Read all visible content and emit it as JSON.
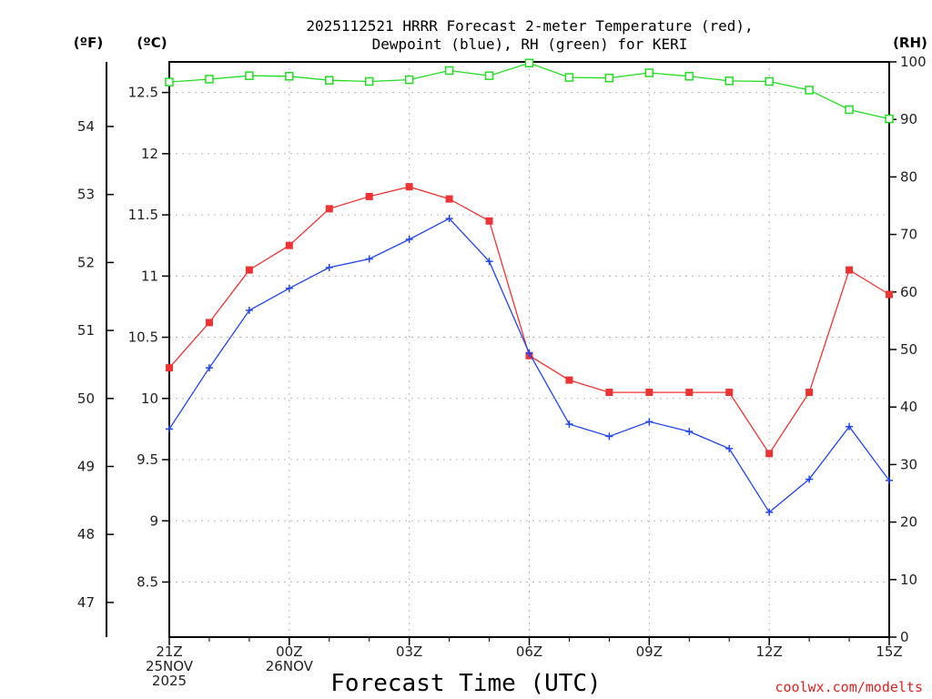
{
  "chart_data": {
    "type": "line",
    "title_lines": [
      "2025112521 HRRR Forecast 2-meter Temperature (red),",
      "Dewpoint (blue), RH (green) for KERI"
    ],
    "unit_labels": {
      "fahrenheit": "(ºF)",
      "celsius": "(ºC)",
      "rh": "(RH)"
    },
    "xlabel": "Forecast Time (UTC)",
    "credit": "coolwx.com/modelts",
    "x_hours": [
      0,
      1,
      2,
      3,
      4,
      5,
      6,
      7,
      8,
      9,
      10,
      11,
      12,
      13,
      14,
      15,
      16,
      17,
      18
    ],
    "x_ticks": [
      {
        "hour": 0,
        "lines": [
          "21Z",
          "25NOV",
          "2025"
        ]
      },
      {
        "hour": 3,
        "lines": [
          "00Z",
          "26NOV"
        ]
      },
      {
        "hour": 6,
        "lines": [
          "03Z"
        ]
      },
      {
        "hour": 9,
        "lines": [
          "06Z"
        ]
      },
      {
        "hour": 12,
        "lines": [
          "09Z"
        ]
      },
      {
        "hour": 15,
        "lines": [
          "12Z"
        ]
      },
      {
        "hour": 18,
        "lines": [
          "15Z"
        ]
      }
    ],
    "celsius_axis": {
      "ylim": [
        8.05,
        12.75
      ],
      "ticks": [
        "8.5",
        "9",
        "9.5",
        "10",
        "10.5",
        "11",
        "11.5",
        "12",
        "12.5"
      ]
    },
    "fahrenheit_axis": {
      "ticks": [
        "47",
        "48",
        "49",
        "50",
        "51",
        "52",
        "53",
        "54"
      ]
    },
    "rh_axis": {
      "ylim": [
        0,
        100
      ],
      "ticks": [
        "0",
        "10",
        "20",
        "30",
        "40",
        "50",
        "60",
        "70",
        "80",
        "90",
        "100"
      ]
    },
    "grid": true,
    "series": [
      {
        "name": "Temperature",
        "color": "#ee3333",
        "marker": "filled-square",
        "axis": "celsius",
        "values": [
          10.25,
          10.62,
          11.05,
          11.25,
          11.55,
          11.65,
          11.73,
          11.63,
          11.45,
          10.35,
          10.15,
          10.05,
          10.05,
          10.05,
          10.05,
          9.55,
          10.05,
          11.05,
          10.85
        ]
      },
      {
        "name": "Dewpoint",
        "color": "#2244ee",
        "marker": "plus",
        "axis": "celsius",
        "values": [
          9.75,
          10.25,
          10.72,
          10.9,
          11.07,
          11.14,
          11.3,
          11.47,
          11.12,
          10.37,
          9.79,
          9.69,
          9.81,
          9.73,
          9.59,
          9.07,
          9.34,
          9.77,
          9.33
        ]
      },
      {
        "name": "RH",
        "color": "#22dd22",
        "marker": "open-square",
        "axis": "rh",
        "values": [
          96.5,
          97.0,
          97.6,
          97.5,
          96.8,
          96.6,
          96.9,
          98.5,
          97.6,
          99.8,
          97.3,
          97.2,
          98.1,
          97.5,
          96.7,
          96.6,
          95.1,
          91.7,
          90.1
        ]
      }
    ]
  }
}
